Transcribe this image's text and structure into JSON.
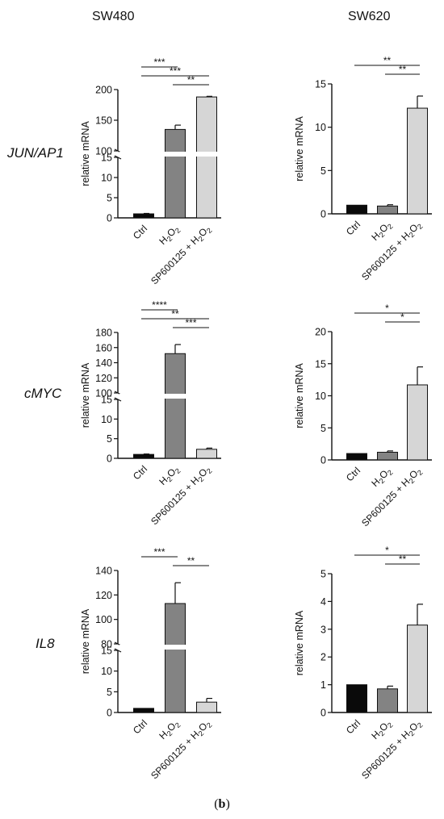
{
  "figure": {
    "column_titles": [
      "SW480",
      "SW620"
    ],
    "row_labels": [
      "JUN/AP1",
      "cMYC",
      "IL8"
    ],
    "panel_label_left": "(",
    "panel_label_letter": "b",
    "panel_label_right": ")"
  },
  "colors": {
    "Ctrl": "#0a0a0a",
    "H2O2": "#838383",
    "SP600125 + H2O2": "#d6d6d6"
  },
  "chart_data": [
    {
      "id": "jun-sw480",
      "type": "bar",
      "title": "",
      "xlabel": "",
      "ylabel": "relative mRNA",
      "categories": [
        "Ctrl",
        "H2O2",
        "SP600125 + H2O2"
      ],
      "values": [
        1,
        135,
        188
      ],
      "errors": [
        0.1,
        7,
        1
      ],
      "axis_break": true,
      "lower_range": [
        0,
        15
      ],
      "upper_range": [
        100,
        200
      ],
      "yticks_lower": [
        0,
        5,
        10,
        15
      ],
      "yticks_upper": [
        100,
        150,
        200
      ],
      "significance": [
        {
          "from": 0,
          "to": 1,
          "label": "***"
        },
        {
          "from": 0,
          "to": 2,
          "label": "***"
        },
        {
          "from": 1,
          "to": 2,
          "label": "**"
        }
      ]
    },
    {
      "id": "jun-sw620",
      "type": "bar",
      "title": "",
      "xlabel": "",
      "ylabel": "relative mRNA",
      "categories": [
        "Ctrl",
        "H2O2",
        "SP600125 + H2O2"
      ],
      "values": [
        1,
        0.9,
        12.2
      ],
      "errors": [
        0,
        0.15,
        1.4
      ],
      "axis_break": false,
      "ylim": [
        0,
        15
      ],
      "yticks": [
        0,
        5,
        10,
        15
      ],
      "significance": [
        {
          "from": 0,
          "to": 2,
          "label": "**"
        },
        {
          "from": 1,
          "to": 2,
          "label": "**"
        }
      ]
    },
    {
      "id": "myc-sw480",
      "type": "bar",
      "title": "",
      "xlabel": "",
      "ylabel": "relative mRNA",
      "categories": [
        "Ctrl",
        "H2O2",
        "SP600125 + H2O2"
      ],
      "values": [
        1,
        152,
        2.3
      ],
      "errors": [
        0.1,
        12,
        0.3
      ],
      "axis_break": true,
      "lower_range": [
        0,
        15
      ],
      "upper_range": [
        100,
        180
      ],
      "yticks_lower": [
        0,
        5,
        10,
        15
      ],
      "yticks_upper": [
        100,
        120,
        140,
        160,
        180
      ],
      "significance": [
        {
          "from": 0,
          "to": 1,
          "label": "****"
        },
        {
          "from": 0,
          "to": 2,
          "label": "**"
        },
        {
          "from": 1,
          "to": 2,
          "label": "***"
        }
      ]
    },
    {
      "id": "myc-sw620",
      "type": "bar",
      "title": "",
      "xlabel": "",
      "ylabel": "relative mRNA",
      "categories": [
        "Ctrl",
        "H2O2",
        "SP600125 + H2O2"
      ],
      "values": [
        1,
        1.2,
        11.7
      ],
      "errors": [
        0,
        0.2,
        2.8
      ],
      "axis_break": false,
      "ylim": [
        0,
        20
      ],
      "yticks": [
        0,
        5,
        10,
        15,
        20
      ],
      "significance": [
        {
          "from": 0,
          "to": 2,
          "label": "*"
        },
        {
          "from": 1,
          "to": 2,
          "label": "*"
        }
      ]
    },
    {
      "id": "il8-sw480",
      "type": "bar",
      "title": "",
      "xlabel": "",
      "ylabel": "relative mRNA",
      "categories": [
        "Ctrl",
        "H2O2",
        "SP600125 + H2O2"
      ],
      "values": [
        1,
        113,
        2.5
      ],
      "errors": [
        0,
        17,
        0.9
      ],
      "axis_break": true,
      "lower_range": [
        0,
        15
      ],
      "upper_range": [
        80,
        140
      ],
      "yticks_lower": [
        0,
        5,
        10,
        15
      ],
      "yticks_upper": [
        80,
        100,
        120,
        140
      ],
      "significance": [
        {
          "from": 0,
          "to": 1,
          "label": "***"
        },
        {
          "from": 1,
          "to": 2,
          "label": "**"
        }
      ]
    },
    {
      "id": "il8-sw620",
      "type": "bar",
      "title": "",
      "xlabel": "",
      "ylabel": "relative mRNA",
      "categories": [
        "Ctrl",
        "H2O2",
        "SP600125 + H2O2"
      ],
      "values": [
        1,
        0.85,
        3.15
      ],
      "errors": [
        0,
        0.1,
        0.75
      ],
      "axis_break": false,
      "ylim": [
        0,
        5
      ],
      "yticks": [
        0,
        1,
        2,
        3,
        4,
        5
      ],
      "significance": [
        {
          "from": 0,
          "to": 2,
          "label": "*"
        },
        {
          "from": 1,
          "to": 2,
          "label": "**"
        }
      ]
    }
  ]
}
